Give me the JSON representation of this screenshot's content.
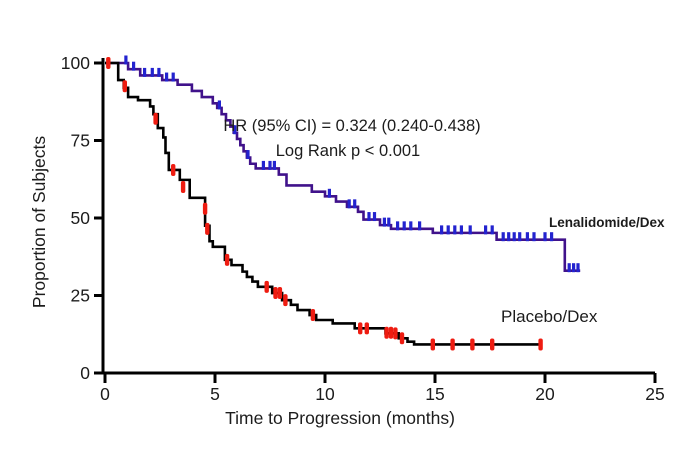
{
  "chart_data": {
    "type": "line",
    "subtype": "kaplan-meier-step",
    "title": "",
    "xlabel": "Time to Progression (months)",
    "ylabel": "Proportion of Subjects",
    "xlim": [
      0,
      25
    ],
    "ylim": [
      0,
      100
    ],
    "xticks": [
      0,
      5,
      10,
      15,
      20,
      25
    ],
    "yticks": [
      0,
      25,
      50,
      75,
      100
    ],
    "grid": false,
    "legend_position": "curve-end-labels",
    "annotation": {
      "line1": "HR (95% CI) = 0.324 (0.240-0.438)",
      "line2": "Log Rank p < 0.001"
    },
    "axis_color": "#000000",
    "series": [
      {
        "name": "Lenalidomide/Dex",
        "color": "#40128b",
        "censor_color": "#2323cf",
        "steps": [
          [
            0,
            100
          ],
          [
            1.05,
            98
          ],
          [
            1.6,
            96
          ],
          [
            2.6,
            94.5
          ],
          [
            3.3,
            93
          ],
          [
            3.95,
            91
          ],
          [
            4.4,
            89
          ],
          [
            4.9,
            87
          ],
          [
            5.1,
            85.5
          ],
          [
            5.3,
            83.5
          ],
          [
            5.5,
            81.5
          ],
          [
            5.7,
            79.5
          ],
          [
            5.85,
            77.5
          ],
          [
            6.0,
            75.5
          ],
          [
            6.15,
            73.5
          ],
          [
            6.3,
            71.5
          ],
          [
            6.45,
            69.5
          ],
          [
            6.6,
            67.5
          ],
          [
            6.85,
            66
          ],
          [
            7.9,
            64
          ],
          [
            8.25,
            60.5
          ],
          [
            9.4,
            58.5
          ],
          [
            10.0,
            57
          ],
          [
            10.5,
            55.3
          ],
          [
            11.0,
            53.6
          ],
          [
            11.5,
            52
          ],
          [
            11.75,
            49.5
          ],
          [
            12.5,
            47.7
          ],
          [
            13.0,
            46.5
          ],
          [
            14.9,
            45.2
          ],
          [
            17.8,
            43
          ],
          [
            20.9,
            33
          ]
        ],
        "end": 21.6,
        "censors": [
          [
            0.95,
            100
          ],
          [
            1.3,
            98
          ],
          [
            1.8,
            96
          ],
          [
            2.15,
            96
          ],
          [
            2.45,
            96
          ],
          [
            2.8,
            94.5
          ],
          [
            3.1,
            94.5
          ],
          [
            5.2,
            85.5
          ],
          [
            5.9,
            77.5
          ],
          [
            6.5,
            69.5
          ],
          [
            7.2,
            66
          ],
          [
            7.5,
            66
          ],
          [
            7.7,
            66
          ],
          [
            10.2,
            57
          ],
          [
            11.1,
            53.6
          ],
          [
            11.35,
            53.6
          ],
          [
            12.0,
            49.5
          ],
          [
            12.25,
            49.5
          ],
          [
            12.7,
            47.7
          ],
          [
            12.9,
            47.7
          ],
          [
            13.3,
            46.5
          ],
          [
            13.6,
            46.5
          ],
          [
            13.9,
            46.5
          ],
          [
            14.3,
            46.5
          ],
          [
            15.3,
            45.2
          ],
          [
            15.6,
            45.2
          ],
          [
            15.9,
            45.2
          ],
          [
            16.2,
            45.2
          ],
          [
            16.6,
            45.2
          ],
          [
            17.3,
            45.2
          ],
          [
            17.6,
            45.2
          ],
          [
            18.1,
            43
          ],
          [
            18.35,
            43
          ],
          [
            18.6,
            43
          ],
          [
            18.85,
            43
          ],
          [
            19.2,
            43
          ],
          [
            19.5,
            43
          ],
          [
            20.0,
            43
          ],
          [
            20.3,
            43
          ],
          [
            21.1,
            33
          ],
          [
            21.3,
            33
          ],
          [
            21.5,
            33
          ]
        ]
      },
      {
        "name": "Placebo/Dex",
        "color": "#000000",
        "censor_color": "#ee1c11",
        "steps": [
          [
            0,
            100
          ],
          [
            0.6,
            94.5
          ],
          [
            0.85,
            92
          ],
          [
            1.05,
            89
          ],
          [
            1.5,
            88
          ],
          [
            2.05,
            86
          ],
          [
            2.2,
            83.5
          ],
          [
            2.4,
            79
          ],
          [
            2.65,
            76
          ],
          [
            2.75,
            71
          ],
          [
            2.9,
            65.5
          ],
          [
            3.4,
            62.3
          ],
          [
            3.85,
            56.5
          ],
          [
            4.55,
            47.5
          ],
          [
            4.75,
            42.5
          ],
          [
            4.9,
            40.7
          ],
          [
            5.45,
            36.5
          ],
          [
            5.75,
            34.8
          ],
          [
            6.25,
            32.7
          ],
          [
            6.45,
            31
          ],
          [
            6.7,
            29.5
          ],
          [
            6.95,
            27.8
          ],
          [
            7.6,
            25.8
          ],
          [
            8.05,
            23.5
          ],
          [
            8.45,
            22
          ],
          [
            8.75,
            20.3
          ],
          [
            9.3,
            18.7
          ],
          [
            9.6,
            17.1
          ],
          [
            10.35,
            16
          ],
          [
            11.35,
            14.4
          ],
          [
            12.75,
            12.8
          ],
          [
            13.35,
            11.2
          ],
          [
            13.75,
            10.1
          ],
          [
            14.05,
            9.2
          ]
        ],
        "end": 19.85,
        "censors": [
          [
            0.15,
            100
          ],
          [
            0.9,
            92.5
          ],
          [
            2.3,
            82
          ],
          [
            3.1,
            65.5
          ],
          [
            3.55,
            60
          ],
          [
            4.55,
            53
          ],
          [
            4.65,
            46.5
          ],
          [
            5.55,
            36.5
          ],
          [
            7.35,
            27.8
          ],
          [
            7.75,
            25.8
          ],
          [
            7.95,
            25.8
          ],
          [
            8.2,
            23.5
          ],
          [
            9.45,
            18.7
          ],
          [
            11.6,
            14.4
          ],
          [
            11.9,
            14.4
          ],
          [
            12.8,
            13
          ],
          [
            13.0,
            13
          ],
          [
            13.2,
            12.8
          ],
          [
            13.5,
            11.2
          ],
          [
            14.9,
            9.2
          ],
          [
            15.8,
            9.2
          ],
          [
            16.7,
            9.2
          ],
          [
            17.6,
            9.2
          ],
          [
            19.8,
            9.2
          ]
        ]
      }
    ]
  }
}
